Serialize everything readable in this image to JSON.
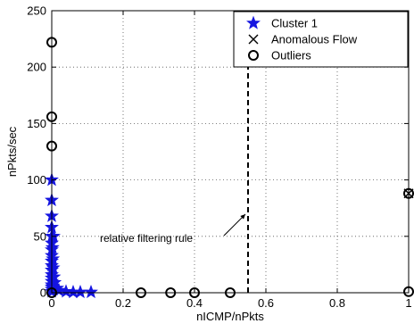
{
  "chart_data": {
    "type": "scatter",
    "xlabel": "nICMP/nPkts",
    "ylabel": "nPkts/sec",
    "xlim": [
      0,
      1
    ],
    "ylim": [
      0,
      250
    ],
    "xticks": [
      0,
      0.2,
      0.4,
      0.6,
      0.8,
      1
    ],
    "xtick_labels": [
      "0",
      "0.2",
      "0.4",
      "0.6",
      "0.8",
      "1"
    ],
    "yticks": [
      0,
      50,
      100,
      150,
      200,
      250
    ],
    "ytick_labels": [
      "0",
      "50",
      "100",
      "150",
      "200",
      "250"
    ],
    "grid": true,
    "legend_position": "top-right",
    "series": [
      {
        "name": "Cluster 1",
        "marker": "star",
        "color": "#1515e0",
        "points": [
          [
            0.0,
            100
          ],
          [
            0.0,
            82
          ],
          [
            0.0,
            68
          ],
          [
            0.0,
            58
          ],
          [
            0.0,
            50
          ],
          [
            0.005,
            50
          ],
          [
            0.0,
            44
          ],
          [
            0.0,
            38
          ],
          [
            0.0,
            33
          ],
          [
            0.0,
            28
          ],
          [
            0.0,
            24
          ],
          [
            0.0,
            20
          ],
          [
            0.0,
            16
          ],
          [
            0.0,
            13
          ],
          [
            0.0,
            10
          ],
          [
            0.0,
            7
          ],
          [
            0.0,
            5
          ],
          [
            0.0,
            3
          ],
          [
            0.0,
            1
          ],
          [
            0.003,
            30
          ],
          [
            0.004,
            22
          ],
          [
            0.006,
            14
          ],
          [
            0.008,
            9
          ],
          [
            0.002,
            40
          ],
          [
            0.003,
            6
          ],
          [
            0.005,
            3
          ],
          [
            0.02,
            2
          ],
          [
            0.04,
            1
          ],
          [
            0.06,
            0.5
          ],
          [
            0.08,
            0.5
          ],
          [
            0.11,
            0.5
          ],
          [
            0.015,
            4
          ]
        ]
      },
      {
        "name": "Anomalous Flow",
        "marker": "x",
        "color": "#000000",
        "points": [
          [
            1.0,
            88
          ]
        ]
      },
      {
        "name": "Outliers",
        "marker": "circle",
        "color": "#000000",
        "points": [
          [
            0.0,
            222
          ],
          [
            0.0,
            156
          ],
          [
            0.0,
            130
          ],
          [
            0.0,
            0
          ],
          [
            0.25,
            0
          ],
          [
            0.333,
            0
          ],
          [
            0.4,
            0
          ],
          [
            0.5,
            0
          ],
          [
            1.0,
            88
          ],
          [
            1.0,
            1
          ]
        ]
      }
    ],
    "filter_rule": {
      "x": 0.55,
      "label": "relative filtering rule",
      "line_style": "dashed"
    }
  }
}
